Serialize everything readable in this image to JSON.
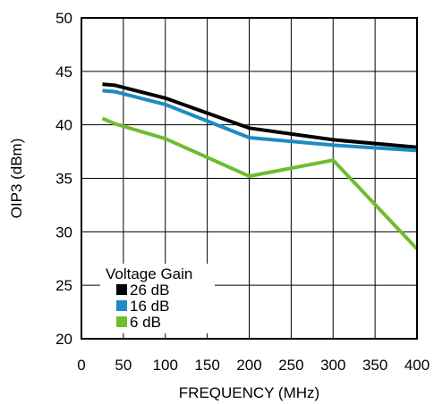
{
  "chart_data": {
    "type": "line",
    "xlabel": "FREQUENCY (MHz)",
    "ylabel": "OIP3 (dBm)",
    "xlim": [
      0,
      400
    ],
    "ylim": [
      20,
      50
    ],
    "xticks": [
      0,
      50,
      100,
      150,
      200,
      250,
      300,
      350,
      400
    ],
    "yticks": [
      20,
      25,
      30,
      35,
      40,
      45,
      50
    ],
    "grid": true,
    "legend": {
      "title": "Voltage Gain",
      "placement": "bottom-left"
    },
    "series": [
      {
        "name": "26 dB",
        "color": "#000000",
        "points": [
          [
            25,
            43.8
          ],
          [
            40,
            43.7
          ],
          [
            100,
            42.5
          ],
          [
            200,
            39.7
          ],
          [
            300,
            38.6
          ],
          [
            400,
            37.9
          ]
        ]
      },
      {
        "name": "16 dB",
        "color": "#1E8BC3",
        "points": [
          [
            25,
            43.2
          ],
          [
            40,
            43.1
          ],
          [
            100,
            41.9
          ],
          [
            200,
            38.8
          ],
          [
            300,
            38.1
          ],
          [
            400,
            37.6
          ]
        ]
      },
      {
        "name": "6 dB",
        "color": "#6DBE2F",
        "points": [
          [
            25,
            40.6
          ],
          [
            40,
            40.1
          ],
          [
            100,
            38.7
          ],
          [
            200,
            35.2
          ],
          [
            300,
            36.7
          ],
          [
            400,
            28.4
          ]
        ]
      }
    ]
  }
}
